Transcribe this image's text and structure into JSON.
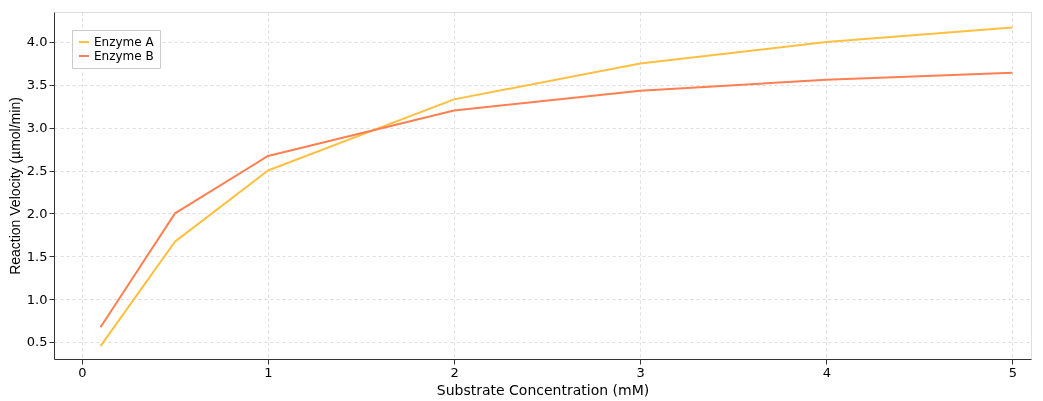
{
  "chart_data": {
    "type": "line",
    "xlabel": "Substrate Concentration (mM)",
    "ylabel": "Reaction Velocity (µmol/min)",
    "x": [
      0.1,
      0.5,
      1,
      2,
      3,
      4,
      5
    ],
    "series": [
      {
        "name": "Enzyme A",
        "color": "#ffbf3f",
        "values": [
          0.45,
          1.67,
          2.5,
          3.33,
          3.75,
          4.0,
          4.17
        ]
      },
      {
        "name": "Enzyme B",
        "color": "#ff7f50",
        "values": [
          0.67,
          2.0,
          2.67,
          3.2,
          3.43,
          3.56,
          3.64
        ]
      }
    ],
    "xlim": [
      -0.15,
      5.1
    ],
    "xticks": [
      0,
      1,
      2,
      3,
      4,
      5
    ],
    "ylim": [
      0.3,
      4.35
    ],
    "yticks": [
      0.5,
      {
        "value": 1,
        "label": "1.0"
      },
      1.5,
      {
        "value": 2,
        "label": "2.0"
      },
      2.5,
      {
        "value": 3,
        "label": "3.0"
      },
      3.5,
      {
        "value": 4,
        "label": "4.0"
      }
    ],
    "grid": true,
    "legend": "top left",
    "marker": "none",
    "line_style": "solid"
  }
}
